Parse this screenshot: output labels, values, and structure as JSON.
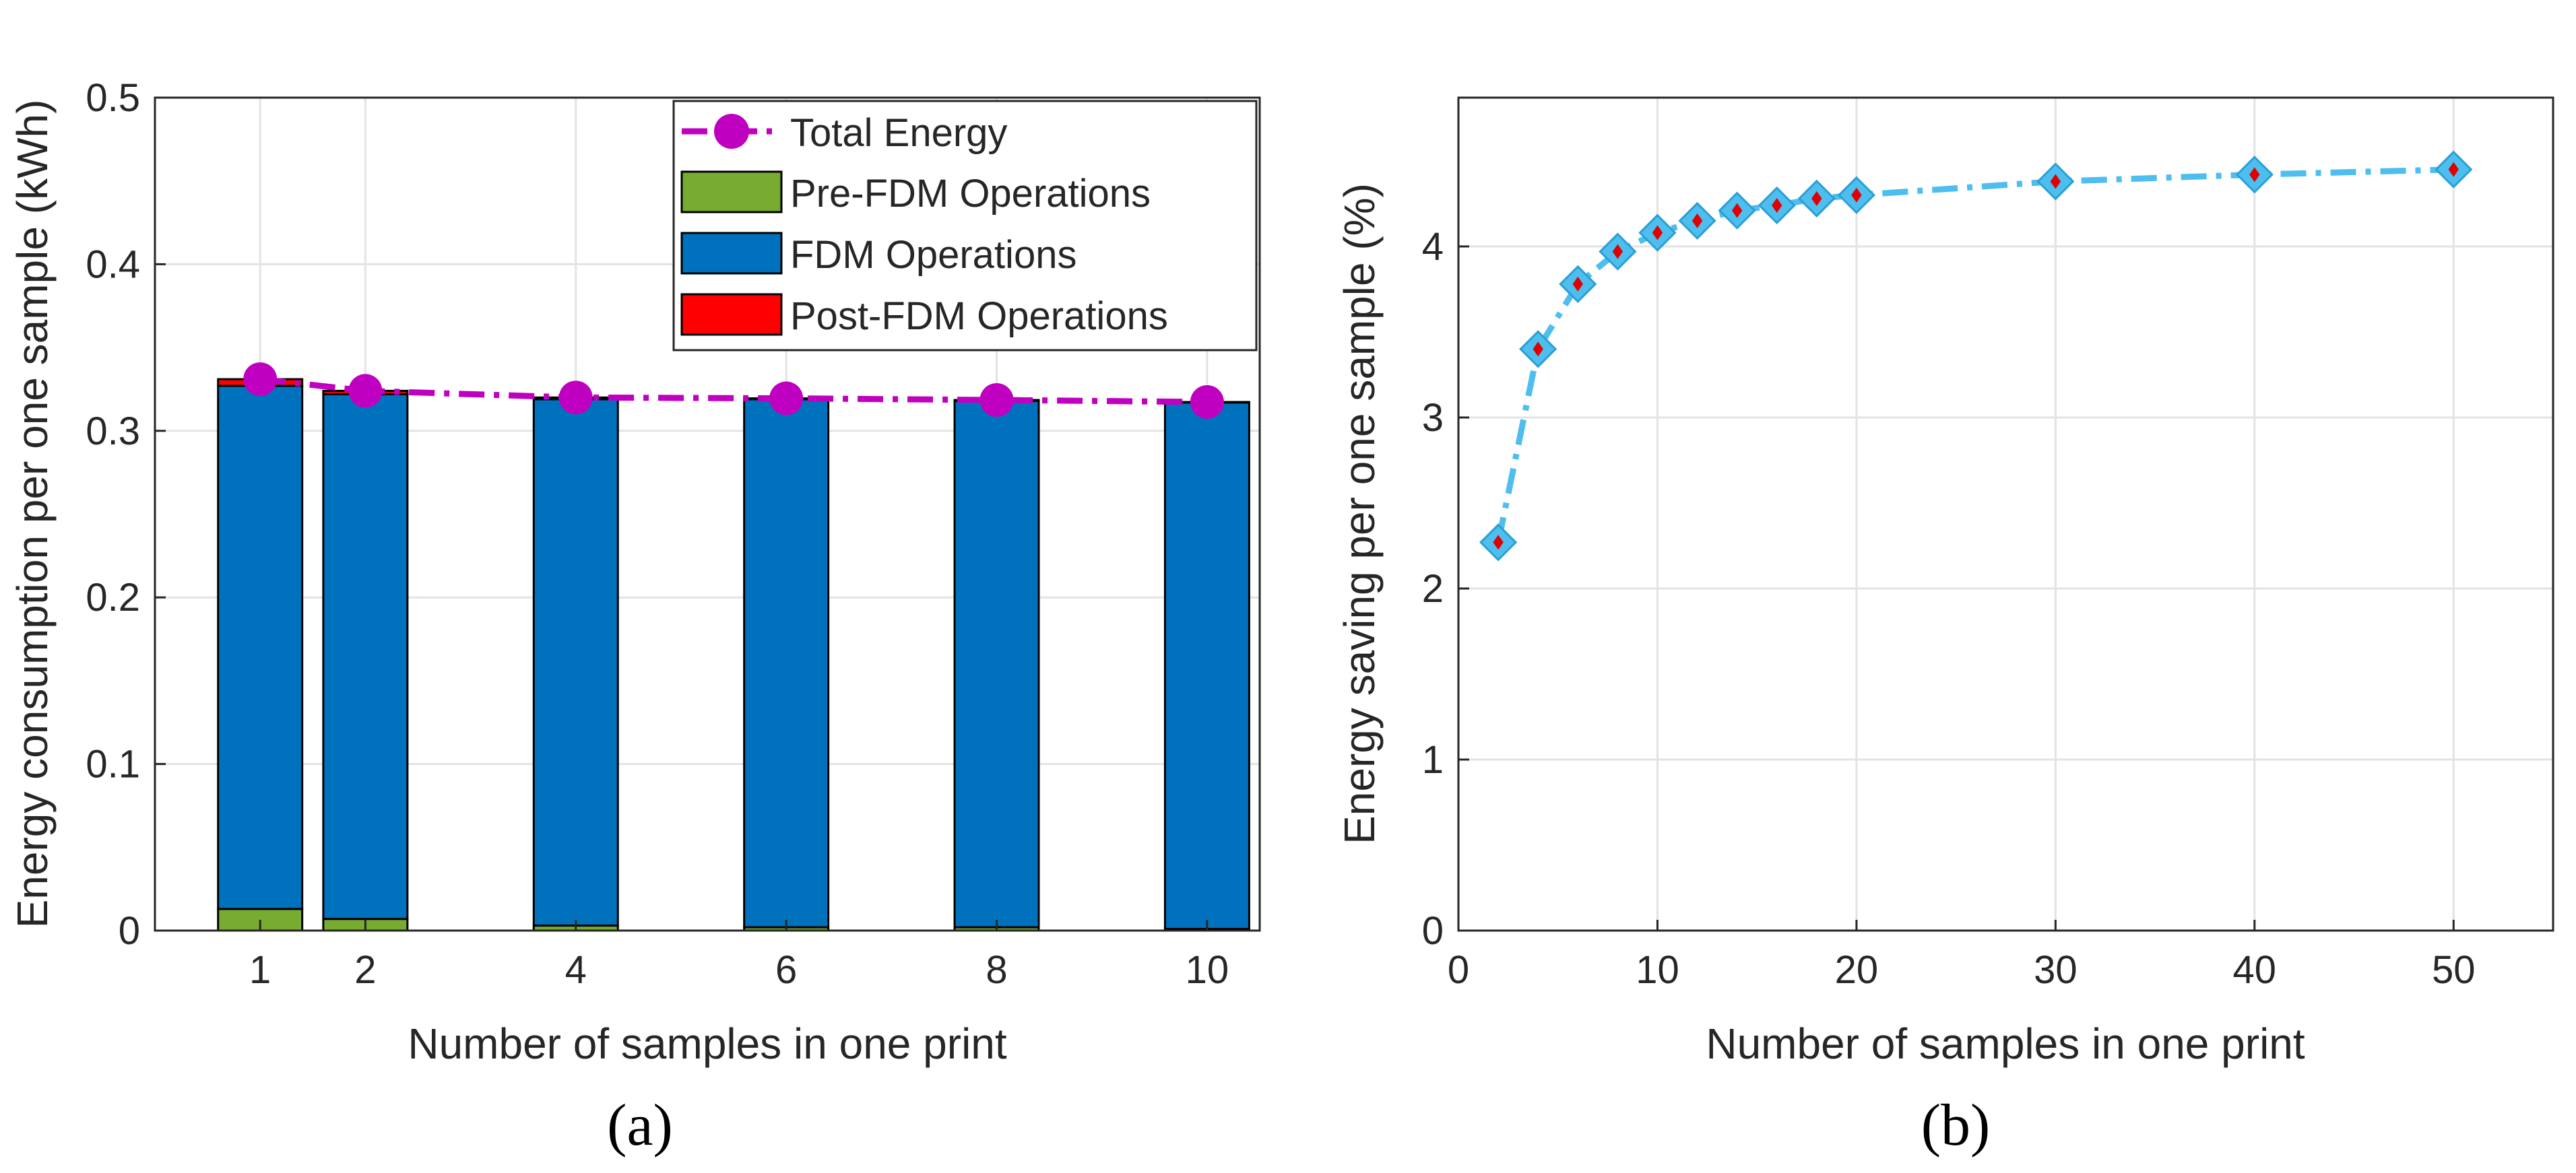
{
  "chart_data": [
    {
      "type": "bar",
      "stacked": true,
      "caption": "(a)",
      "xlabel": "Number of samples in one print",
      "ylabel": "Energy consumption per one sample (kWh)",
      "xlim": [
        0,
        10.5
      ],
      "ylim": [
        0,
        0.5
      ],
      "xticks": [
        1,
        2,
        4,
        6,
        8,
        10
      ],
      "yticks": [
        0,
        0.1,
        0.2,
        0.3,
        0.4,
        0.5
      ],
      "ytick_labels": [
        "0",
        "0.1",
        "0.2",
        "0.3",
        "0.4",
        "0.5"
      ],
      "grid": true,
      "legend_position": "top-right",
      "categories": [
        1,
        2,
        4,
        6,
        8,
        10
      ],
      "series": [
        {
          "name": "Pre-FDM Operations",
          "color": "#77ac30",
          "values": [
            0.013,
            0.007,
            0.003,
            0.002,
            0.002,
            0.001
          ]
        },
        {
          "name": "FDM Operations",
          "color": "#0072bd",
          "values": [
            0.314,
            0.315,
            0.316,
            0.317,
            0.316,
            0.316
          ]
        },
        {
          "name": "Post-FDM Operations",
          "color": "#ff0000",
          "values": [
            0.004,
            0.002,
            0.001,
            0.0005,
            0.0005,
            0.0003
          ]
        }
      ],
      "line_series": {
        "name": "Total Energy",
        "color": "#c000c0",
        "x": [
          1,
          2,
          4,
          6,
          8,
          10
        ],
        "values": [
          0.331,
          0.324,
          0.32,
          0.3195,
          0.3185,
          0.3173
        ]
      }
    },
    {
      "type": "line",
      "caption": "(b)",
      "xlabel": "Number of samples in one print",
      "ylabel": "Energy saving per one sample (%)",
      "xlim": [
        0,
        55
      ],
      "ylim": [
        0,
        4.87
      ],
      "xticks": [
        0,
        10,
        20,
        30,
        40,
        50
      ],
      "yticks": [
        0,
        1,
        2,
        3,
        4
      ],
      "grid": true,
      "series": [
        {
          "name": "Energy saving",
          "color": "#4dbeee",
          "marker_color": "#e00000",
          "x": [
            2,
            4,
            6,
            8,
            10,
            12,
            14,
            16,
            18,
            20,
            30,
            40,
            50
          ],
          "values": [
            2.27,
            3.4,
            3.78,
            3.97,
            4.08,
            4.15,
            4.21,
            4.24,
            4.28,
            4.3,
            4.38,
            4.42,
            4.45
          ]
        }
      ]
    }
  ]
}
